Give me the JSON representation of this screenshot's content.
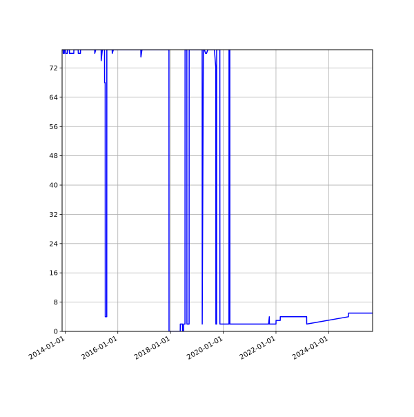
{
  "chart_data": {
    "type": "line",
    "title": "",
    "xlabel": "",
    "ylabel": "",
    "x_axis_type": "date",
    "xlim": [
      "2013-11-20",
      "2025-09-01"
    ],
    "ylim": [
      0,
      77
    ],
    "x_ticks": [
      "2014-01-01",
      "2016-01-01",
      "2018-01-01",
      "2020-01-01",
      "2022-01-01",
      "2024-01-01"
    ],
    "y_ticks": [
      0,
      8,
      16,
      24,
      32,
      40,
      48,
      56,
      64,
      72
    ],
    "grid": true,
    "colors": {
      "line": "#0000ff",
      "grid": "#b0b0b0",
      "axes": "#000000"
    },
    "series": [
      {
        "name": "",
        "x": [
          "2013-11-25",
          "2013-12-05",
          "2013-12-06",
          "2013-12-20",
          "2013-12-21",
          "2014-01-10",
          "2014-01-11",
          "2014-02-01",
          "2014-02-02",
          "2014-03-01",
          "2014-03-02",
          "2014-05-01",
          "2014-05-02",
          "2014-06-15",
          "2014-07-01",
          "2014-07-02",
          "2014-08-01",
          "2014-08-02",
          "2014-09-01",
          "2015-02-15",
          "2015-02-16",
          "2015-03-01",
          "2015-05-15",
          "2015-05-16",
          "2015-06-01",
          "2015-06-15",
          "2015-07-01",
          "2015-07-02",
          "2015-07-10",
          "2015-07-11",
          "2015-08-01",
          "2015-08-02",
          "2015-09-01",
          "2015-10-15",
          "2015-10-16",
          "2015-11-01",
          "2016-01-01",
          "2016-11-15",
          "2016-11-16",
          "2016-12-01",
          "2017-12-10",
          "2017-12-11",
          "2018-01-01",
          "2018-05-15",
          "2018-05-16",
          "2018-06-15",
          "2018-06-16",
          "2018-07-01",
          "2018-07-02",
          "2018-07-20",
          "2018-07-21",
          "2018-08-01",
          "2018-08-15",
          "2018-08-16",
          "2018-09-15",
          "2018-09-16",
          "2019-01-01",
          "2019-03-15",
          "2019-03-16",
          "2019-04-01",
          "2019-04-15",
          "2019-05-01",
          "2019-05-15",
          "2019-06-01",
          "2019-06-15",
          "2019-08-01",
          "2019-09-01",
          "2019-09-20",
          "2019-09-21",
          "2019-10-01",
          "2019-10-02",
          "2019-11-01",
          "2019-11-15",
          "2019-11-16",
          "2020-03-20",
          "2020-03-21",
          "2020-04-01",
          "2020-04-02",
          "2021-09-01",
          "2021-09-20",
          "2021-10-01",
          "2021-10-02",
          "2022-01-01",
          "2022-01-02",
          "2022-03-01",
          "2022-03-02",
          "2023-03-01",
          "2023-03-02",
          "2023-03-03",
          "2024-10-01",
          "2024-10-02",
          "2025-09-01"
        ],
        "y": [
          77,
          77,
          76,
          76,
          77,
          77,
          76,
          76,
          77,
          77,
          76,
          76,
          77,
          77,
          77,
          76,
          76,
          77,
          77,
          77,
          76,
          77,
          77,
          74,
          77,
          77,
          77,
          68,
          68,
          4,
          4,
          77,
          77,
          77,
          76,
          77,
          77,
          77,
          75,
          77,
          77,
          0,
          0,
          0,
          2,
          2,
          0,
          0,
          2,
          2,
          77,
          77,
          77,
          2,
          2,
          77,
          77,
          77,
          2,
          77,
          77,
          76,
          76,
          77,
          77,
          77,
          77,
          72,
          2,
          2,
          77,
          77,
          77,
          2,
          2,
          77,
          77,
          2,
          2,
          2,
          4,
          2,
          2,
          3,
          3,
          4,
          4,
          4,
          2,
          4,
          5,
          5
        ]
      }
    ]
  }
}
